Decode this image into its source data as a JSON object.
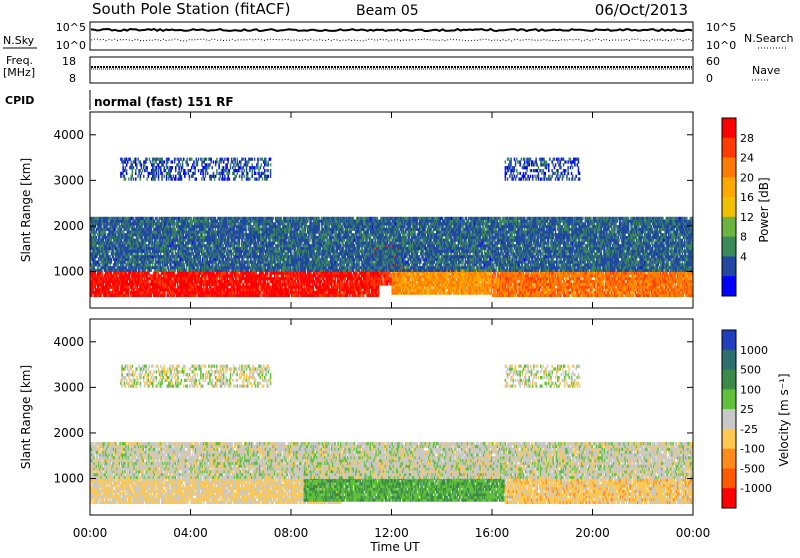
{
  "header": {
    "station": "South Pole Station (fitACF)",
    "beam": "Beam 05",
    "date": "06/Oct/2013"
  },
  "noise_panel": {
    "left_label": "N.Sky",
    "left_ticks": [
      "10^5",
      "10^0"
    ],
    "right_label": "N.Search",
    "right_ticks": [
      "10^5",
      "10^0"
    ]
  },
  "freq_panel": {
    "left_label_line1": "Freq.",
    "left_label_line2": "[MHz]",
    "left_ticks": [
      "18",
      "8"
    ],
    "right_label": "Nave",
    "right_ticks": [
      "60",
      "0"
    ]
  },
  "cpid_panel": {
    "label": "CPID",
    "program": "normal (fast) 151 RF"
  },
  "x_axis": {
    "label": "Time UT",
    "ticks": [
      "00:00",
      "04:00",
      "08:00",
      "12:00",
      "16:00",
      "20:00",
      "00:00"
    ]
  },
  "y_axis": {
    "label": "Slant Range [km]",
    "ticks": [
      "1000",
      "2000",
      "3000",
      "4000"
    ]
  },
  "power_colorbar": {
    "label": "Power [dB]",
    "ticks": [
      "28",
      "24",
      "20",
      "16",
      "12",
      "8",
      "4"
    ],
    "colors": [
      "#ff0000",
      "#ff3b00",
      "#ff7a00",
      "#ffa800",
      "#f0c000",
      "#6db33f",
      "#3c8a5a",
      "#2048a0",
      "#0000ff"
    ]
  },
  "velocity_colorbar": {
    "label": "Velocity [m s⁻¹]",
    "ticks": [
      "1000",
      "500",
      "100",
      "25",
      "-25",
      "-100",
      "-500",
      "-1000"
    ],
    "colors": [
      "#1f3fbf",
      "#2d6f6f",
      "#3c8a4a",
      "#5fc03a",
      "#c8c8c8",
      "#ffc850",
      "#ff8c1a",
      "#ff5a00",
      "#ff0000"
    ]
  },
  "chart_data": [
    {
      "type": "heatmap",
      "title": "Power",
      "x_range": [
        "00:00",
        "24:00"
      ],
      "ylim": [
        200,
        4500
      ],
      "units": "dB",
      "color_range": [
        0,
        30
      ],
      "regions": [
        {
          "t_start": 0.0,
          "t_end": 11.5,
          "range_km": [
            450,
            1000
          ],
          "value": 28
        },
        {
          "t_start": 11.0,
          "t_end": 12.5,
          "range_km": [
            700,
            1600
          ],
          "value": 26
        },
        {
          "t_start": 12.0,
          "t_end": 16.0,
          "range_km": [
            500,
            1100
          ],
          "value": 20
        },
        {
          "t_start": 16.0,
          "t_end": 24.0,
          "range_km": [
            450,
            1000
          ],
          "value": 22
        },
        {
          "t_start": 0.0,
          "t_end": 24.0,
          "range_km": [
            1000,
            2200
          ],
          "value": 6
        },
        {
          "t_start": 1.2,
          "t_end": 7.2,
          "range_km": [
            3000,
            3500
          ],
          "value": 5
        },
        {
          "t_start": 16.5,
          "t_end": 19.5,
          "range_km": [
            3000,
            3500
          ],
          "value": 5
        }
      ]
    },
    {
      "type": "heatmap",
      "title": "Velocity",
      "x_range": [
        "00:00",
        "24:00"
      ],
      "ylim": [
        200,
        4500
      ],
      "units": "m/s",
      "color_range": [
        -1000,
        1000
      ],
      "regions": [
        {
          "t_start": 0.0,
          "t_end": 10.0,
          "range_km": [
            450,
            1000
          ],
          "value": -150
        },
        {
          "t_start": 8.5,
          "t_end": 16.5,
          "range_km": [
            500,
            1400
          ],
          "value": 300
        },
        {
          "t_start": 16.5,
          "t_end": 24.0,
          "range_km": [
            450,
            1000
          ],
          "value": -200
        },
        {
          "t_start": 0.0,
          "t_end": 24.0,
          "range_km": [
            1000,
            1800
          ],
          "value": 0
        },
        {
          "t_start": 1.2,
          "t_end": 7.2,
          "range_km": [
            3000,
            3500
          ],
          "value": 0
        },
        {
          "t_start": 16.5,
          "t_end": 19.5,
          "range_km": [
            3000,
            3500
          ],
          "value": 0
        }
      ]
    }
  ]
}
